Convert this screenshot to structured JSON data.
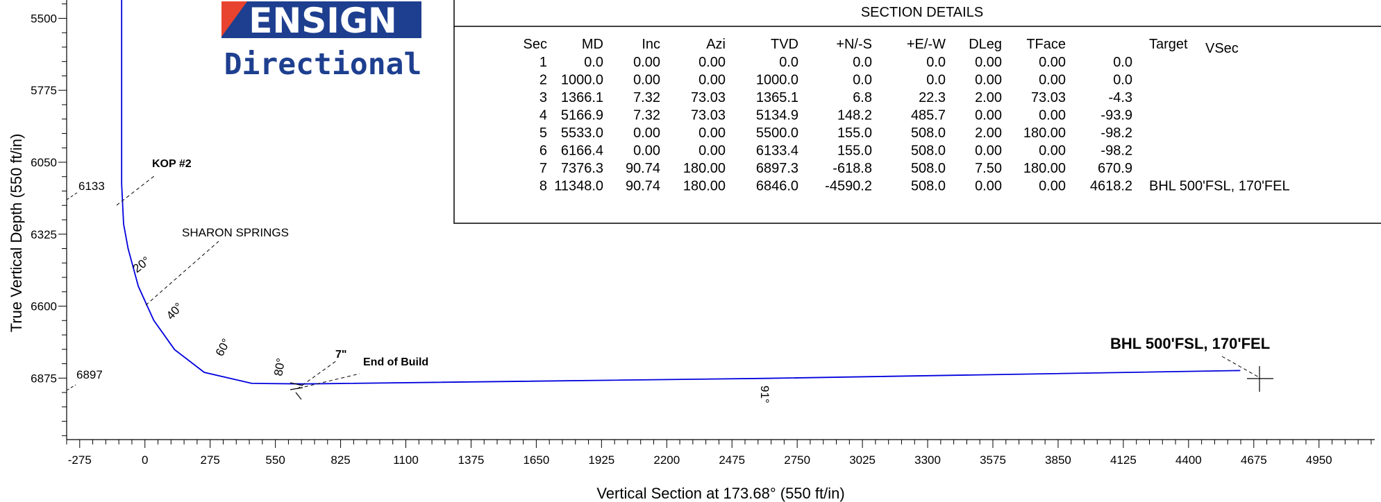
{
  "logo": {
    "line1": "ENSIGN",
    "line2": "Directional"
  },
  "section_details": {
    "title": "SECTION DETAILS",
    "columns": [
      "Sec",
      "MD",
      "Inc",
      "Azi",
      "TVD",
      "+N/-S",
      "+E/-W",
      "DLeg",
      "TFace",
      "",
      "Target",
      "VSec"
    ],
    "rows": [
      [
        "1",
        "0.0",
        "0.00",
        "0.00",
        "0.0",
        "0.0",
        "0.0",
        "0.00",
        "0.00",
        "0.0",
        ""
      ],
      [
        "2",
        "1000.0",
        "0.00",
        "0.00",
        "1000.0",
        "0.0",
        "0.0",
        "0.00",
        "0.00",
        "0.0",
        ""
      ],
      [
        "3",
        "1366.1",
        "7.32",
        "73.03",
        "1365.1",
        "6.8",
        "22.3",
        "2.00",
        "73.03",
        "-4.3",
        ""
      ],
      [
        "4",
        "5166.9",
        "7.32",
        "73.03",
        "5134.9",
        "148.2",
        "485.7",
        "0.00",
        "0.00",
        "-93.9",
        ""
      ],
      [
        "5",
        "5533.0",
        "0.00",
        "0.00",
        "5500.0",
        "155.0",
        "508.0",
        "2.00",
        "180.00",
        "-98.2",
        ""
      ],
      [
        "6",
        "6166.4",
        "0.00",
        "0.00",
        "6133.4",
        "155.0",
        "508.0",
        "0.00",
        "0.00",
        "-98.2",
        ""
      ],
      [
        "7",
        "7376.3",
        "90.74",
        "180.00",
        "6897.3",
        "-618.8",
        "508.0",
        "7.50",
        "180.00",
        "670.9",
        ""
      ],
      [
        "8",
        "11348.0",
        "90.74",
        "180.00",
        "6846.0",
        "-4590.2",
        "508.0",
        "0.00",
        "0.00",
        "4618.2",
        "BHL 500'FSL, 170'FEL"
      ]
    ]
  },
  "chart_data": {
    "type": "line",
    "xlabel": "Vertical Section at 173.68° (550 ft/in)",
    "ylabel": "True Vertical Depth (550 ft/in)",
    "xlim": [
      -330,
      5185
    ],
    "ylim": [
      5430,
      7110
    ],
    "y_inverted": true,
    "x_ticks": [
      "-275",
      "0",
      "275",
      "550",
      "825",
      "1100",
      "1375",
      "1650",
      "1925",
      "2200",
      "2475",
      "2750",
      "3025",
      "3300",
      "3575",
      "3850",
      "4125",
      "4400",
      "4675",
      "4950"
    ],
    "y_ticks": [
      "5500",
      "5775",
      "6050",
      "6325",
      "6600",
      "6875"
    ],
    "line_color": "#0000dd",
    "series": [
      {
        "values": [
          [
            -98.2,
            5430
          ],
          [
            -98.2,
            6133.4
          ],
          [
            -90.0,
            6286
          ],
          [
            -71.0,
            6380
          ],
          [
            -28.0,
            6524
          ],
          [
            37.0,
            6654
          ],
          [
            125.0,
            6766
          ],
          [
            250.0,
            6853
          ],
          [
            450.0,
            6895
          ],
          [
            670.9,
            6897.3
          ],
          [
            2620.0,
            6876
          ],
          [
            4618.2,
            6846.0
          ]
        ]
      }
    ],
    "annotations": {
      "kop": "KOP #2",
      "kop_tvd": "6133",
      "formation": "SHARON SPRINGS",
      "casing": "7\"",
      "end_of_build": "End of Build",
      "eob_tvd": "6897",
      "bhl": "BHL 500'FSL, 170'FEL",
      "inc_labels": [
        "20°",
        "40°",
        "60°",
        "80°",
        "91°"
      ]
    }
  }
}
